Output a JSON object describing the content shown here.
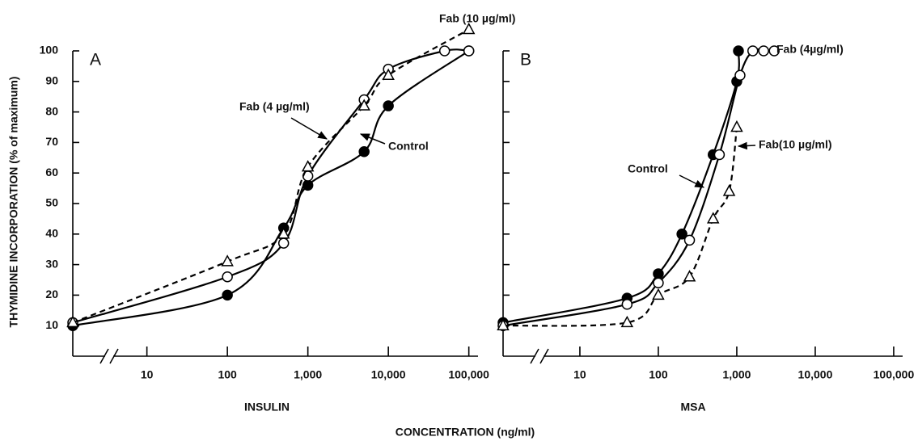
{
  "ylabel": "THYMIDINE INCORPORATION (% of maximum)",
  "xlabel": "CONCENTRATION (ng/ml)",
  "chart_data": [
    {
      "type": "line",
      "panel_label": "A",
      "x_axis_label": "INSULIN",
      "xscale": "log",
      "xlim": [
        1.2,
        130000
      ],
      "xticks": [
        10,
        100,
        {
          "value": 1000,
          "label": "1,000"
        },
        {
          "value": 10000,
          "label": "10,000"
        },
        {
          "value": 100000,
          "label": "100,000"
        }
      ],
      "ylim": [
        0,
        100
      ],
      "yticks": [
        10,
        20,
        30,
        40,
        50,
        60,
        70,
        80,
        90,
        100
      ],
      "show_ytick_labels": true,
      "series": [
        {
          "name": "Control",
          "color": "#000000",
          "marker": "filled-circle",
          "dash": false,
          "x": [
            1.2,
            100,
            500,
            1000,
            5000,
            10000,
            100000
          ],
          "values": [
            10,
            20,
            42,
            56,
            67,
            82,
            100
          ]
        },
        {
          "name": "Fab (4 µg/ml)",
          "color": "#000000",
          "marker": "open-circle",
          "dash": false,
          "x": [
            1.2,
            100,
            500,
            1000,
            5000,
            10000,
            50000,
            100000
          ],
          "values": [
            11,
            26,
            37,
            59,
            84,
            94,
            100,
            100
          ]
        },
        {
          "name": "Fab (10 µg/ml)",
          "color": "#000000",
          "marker": "triangle",
          "dash": true,
          "x": [
            1.2,
            100,
            500,
            1000,
            5000,
            10000,
            100000
          ],
          "values": [
            11,
            31,
            40,
            62,
            82,
            92,
            107
          ]
        }
      ]
    },
    {
      "type": "line",
      "panel_label": "B",
      "x_axis_label": "MSA",
      "xscale": "log",
      "xlim": [
        1.05,
        130000
      ],
      "xticks": [
        10,
        100,
        {
          "value": 1000,
          "label": "1,000"
        },
        {
          "value": 10000,
          "label": "10,000"
        },
        {
          "value": 100000,
          "label": "100,000"
        }
      ],
      "ylim": [
        0,
        100
      ],
      "yticks": [
        10,
        20,
        30,
        40,
        50,
        60,
        70,
        80,
        90,
        100
      ],
      "show_ytick_labels": false,
      "series": [
        {
          "name": "Control",
          "color": "#000000",
          "marker": "filled-circle",
          "dash": false,
          "x": [
            1.05,
            40,
            100,
            200,
            500,
            1000,
            1050
          ],
          "values": [
            11,
            19,
            27,
            40,
            66,
            90,
            100
          ]
        },
        {
          "name": "Fab (4µg/ml)",
          "color": "#000000",
          "marker": "open-circle",
          "dash": false,
          "x": [
            1.05,
            40,
            100,
            250,
            600,
            1100,
            1600,
            2200,
            3000
          ],
          "values": [
            10,
            17,
            24,
            38,
            66,
            92,
            100,
            100,
            100
          ]
        },
        {
          "name": "Fab(10 µg/ml)",
          "color": "#000000",
          "marker": "triangle",
          "dash": true,
          "x": [
            1.05,
            40,
            100,
            250,
            500,
            800,
            1000
          ],
          "values": [
            10,
            11,
            20,
            26,
            45,
            54,
            75
          ]
        }
      ]
    }
  ]
}
